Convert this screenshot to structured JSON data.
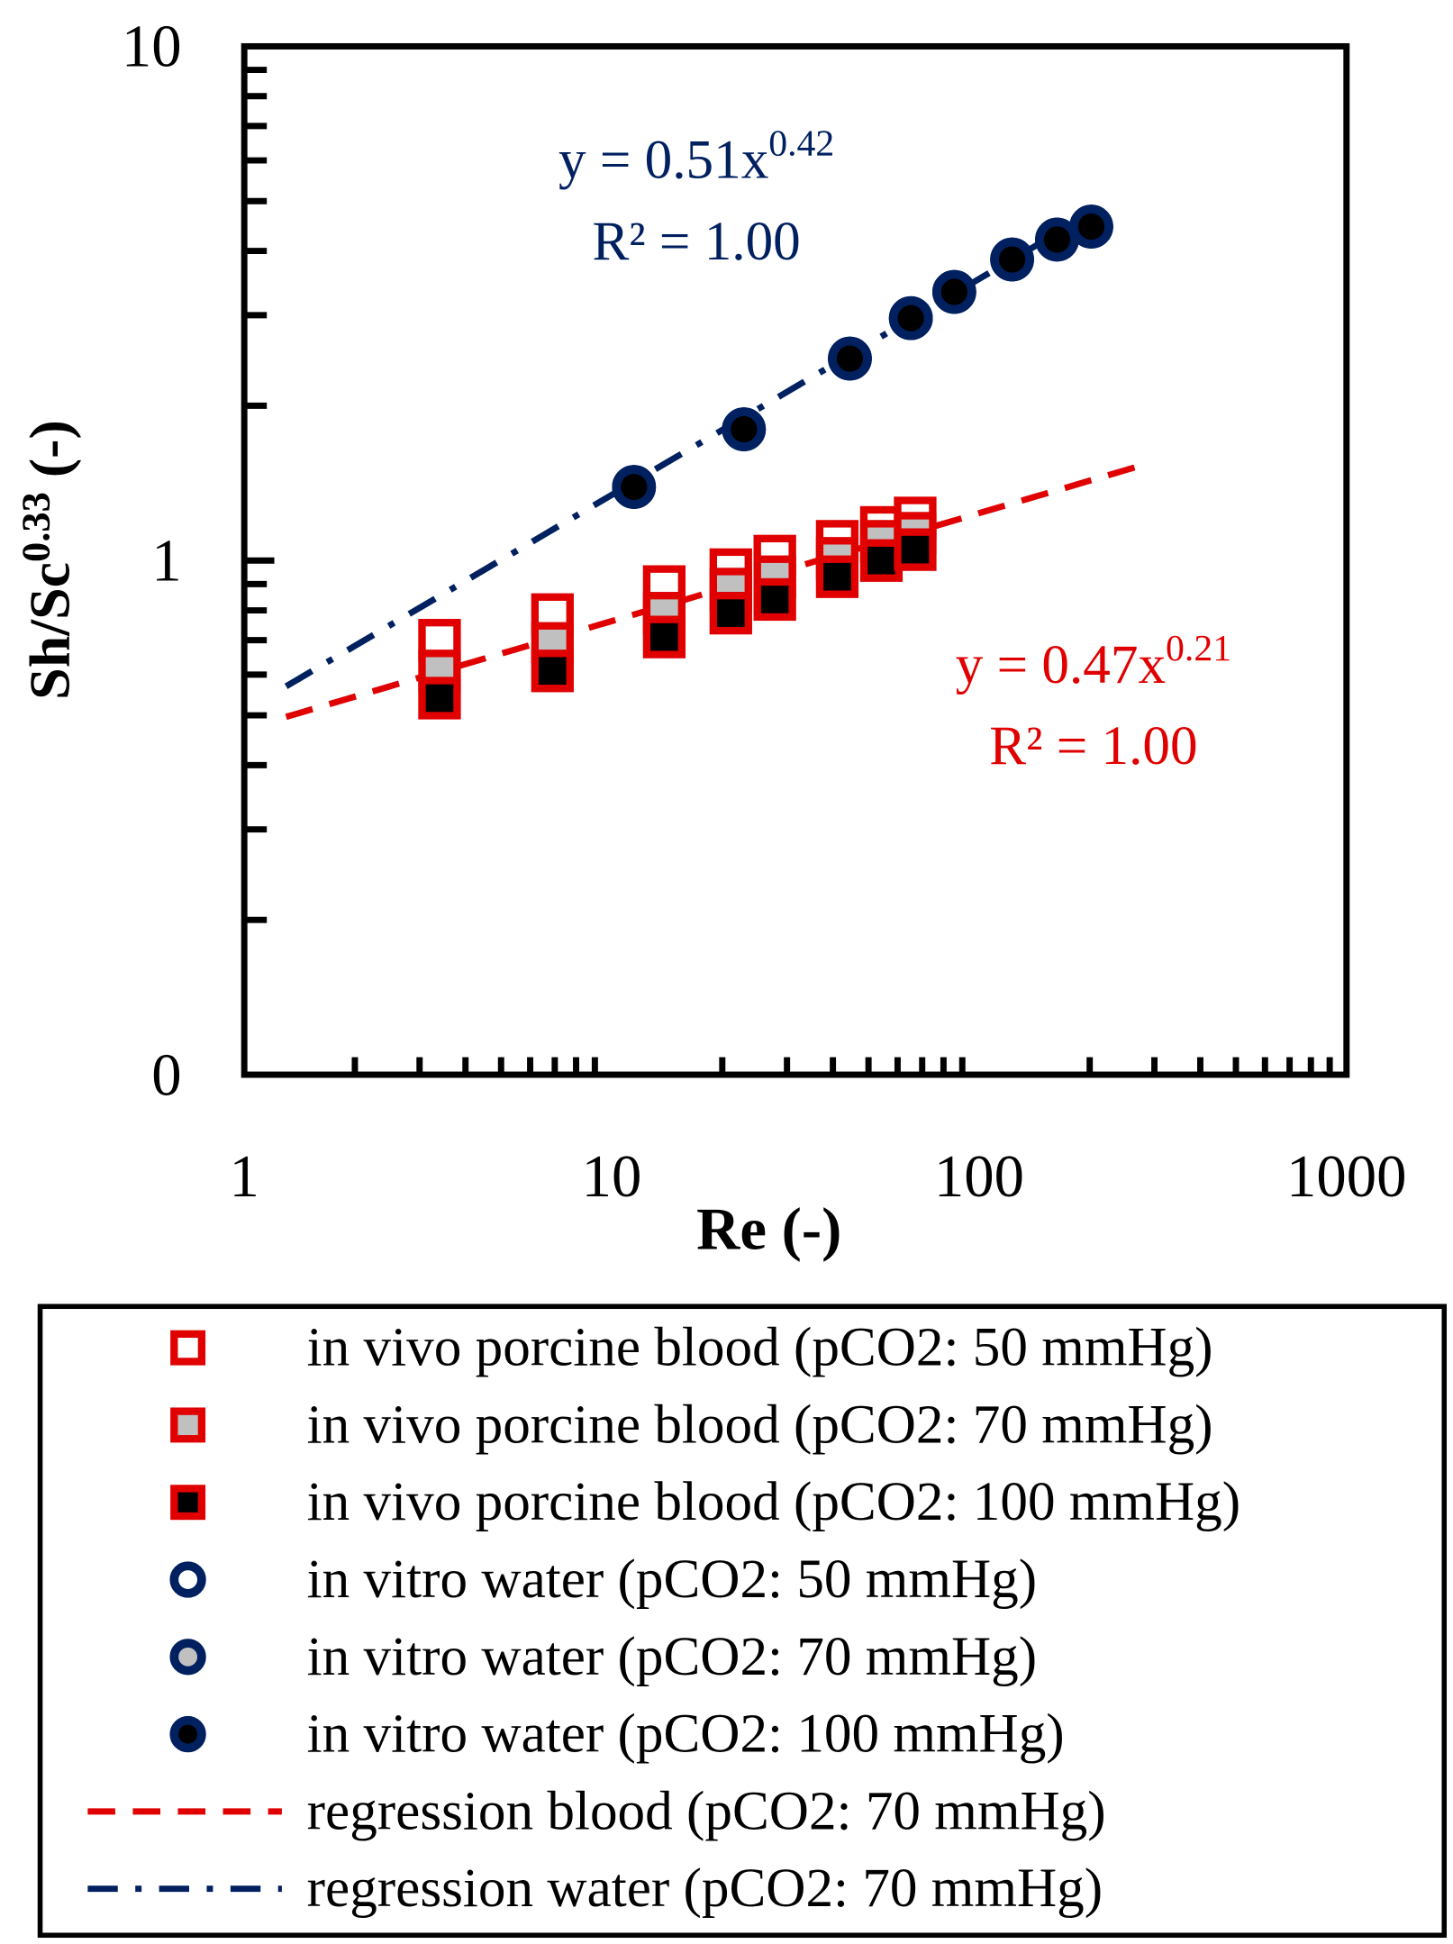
{
  "chart_data": {
    "type": "scatter",
    "xlabel": "Re (-)",
    "ylabel_main": "Sh/Sc",
    "ylabel_exp": "0.33",
    "ylabel_suffix": " (-)",
    "xscale": "log",
    "yscale": "log",
    "xlim": [
      1,
      1000
    ],
    "ylim": [
      0.1,
      10
    ],
    "x_ticks": [
      1,
      10,
      100,
      1000
    ],
    "x_tick_labels": [
      "1",
      "10",
      "100",
      "1000"
    ],
    "y_ticks": [
      0.1,
      1,
      10
    ],
    "y_tick_labels": [
      "0",
      "1",
      "10"
    ],
    "grid": false,
    "legend_position": "below",
    "colors": {
      "blood": "#e00000",
      "water": "#002060",
      "grey": "#c0c0c0",
      "black": "#000000"
    },
    "series": [
      {
        "name": "in vivo porcine blood (pCO2: 50 mmHg)",
        "marker": "square",
        "fill": "#ffffff",
        "edge": "#e00000",
        "x": [
          3.4,
          6.9,
          13.9,
          21.1,
          27.8,
          41.1,
          54.2,
          67.0
        ],
        "y": [
          0.7,
          0.785,
          0.89,
          0.96,
          1.02,
          1.09,
          1.16,
          1.21
        ]
      },
      {
        "name": "in vivo porcine blood (pCO2: 70 mmHg)",
        "marker": "square",
        "fill": "#c0c0c0",
        "edge": "#e00000",
        "x": [
          3.4,
          6.9,
          13.9,
          21.1,
          27.8,
          41.1,
          54.2,
          67.0
        ],
        "y": [
          0.61,
          0.69,
          0.79,
          0.88,
          0.93,
          1.01,
          1.09,
          1.13
        ]
      },
      {
        "name": "in vivo porcine blood (pCO2: 100 mmHg)",
        "marker": "square",
        "fill": "#000000",
        "edge": "#e00000",
        "x": [
          3.4,
          6.9,
          13.9,
          21.1,
          27.8,
          41.1,
          54.2,
          67.0
        ],
        "y": [
          0.54,
          0.61,
          0.71,
          0.79,
          0.84,
          0.93,
          1.0,
          1.05
        ]
      },
      {
        "name": "in vitro water (pCO2: 50 mmHg)",
        "marker": "circle",
        "fill": "#ffffff",
        "edge": "#002060",
        "x": [
          11.5,
          22.9,
          44.5,
          65.2,
          85.6,
          123,
          163,
          202
        ],
        "y": [
          1.39,
          1.8,
          2.47,
          2.96,
          3.33,
          3.85,
          4.21,
          4.46
        ]
      },
      {
        "name": "in vitro water (pCO2: 70 mmHg)",
        "marker": "circle",
        "fill": "#c0c0c0",
        "edge": "#002060",
        "x": [
          11.5,
          22.9,
          44.5,
          65.2,
          85.6,
          123,
          163,
          202
        ],
        "y": [
          1.39,
          1.8,
          2.47,
          2.96,
          3.33,
          3.85,
          4.21,
          4.46
        ]
      },
      {
        "name": "in vitro water (pCO2: 100 mmHg)",
        "marker": "circle",
        "fill": "#000000",
        "edge": "#002060",
        "x": [
          11.5,
          22.9,
          44.5,
          65.2,
          85.6,
          123,
          163,
          202
        ],
        "y": [
          1.39,
          1.8,
          2.47,
          2.96,
          3.33,
          3.85,
          4.21,
          4.46
        ]
      }
    ],
    "regressions": [
      {
        "name": "regression blood (pCO2: 70 mmHg)",
        "a": 0.47,
        "b": 0.21,
        "x_range": [
          1.3,
          270
        ],
        "color": "#e00000",
        "style": "dashed",
        "equation_main": "y = 0.47x",
        "equation_exp": "0.21",
        "r2_label": "R² = 1.00"
      },
      {
        "name": "regression water (pCO2: 70 mmHg)",
        "a": 0.51,
        "b": 0.42,
        "x_range": [
          1.3,
          200
        ],
        "color": "#002060",
        "style": "dashdot",
        "equation_main": "y = 0.51x",
        "equation_exp": "0.42",
        "r2_label": "R² = 1.00"
      }
    ]
  }
}
